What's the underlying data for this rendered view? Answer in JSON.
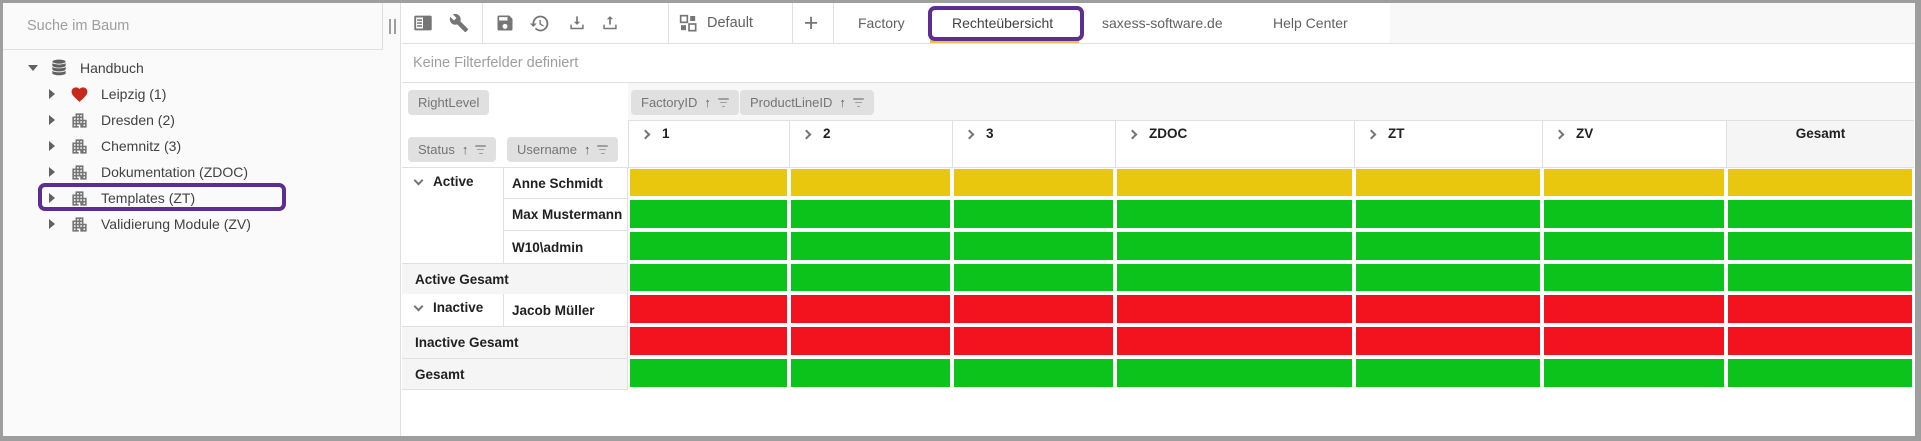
{
  "colors": {
    "annotation_purple": "#5c2e91",
    "active_tab_underline_gold": "#f0c243"
  },
  "sidebar": {
    "search_placeholder": "Suche im Baum",
    "tree": [
      {
        "label": "Handbuch",
        "icon": "database",
        "expanded": true
      },
      {
        "label": "Leipzig (1)",
        "icon": "heart",
        "expanded": false
      },
      {
        "label": "Dresden (2)",
        "icon": "building",
        "expanded": false
      },
      {
        "label": "Chemnitz (3)",
        "icon": "building",
        "expanded": false
      },
      {
        "label": "Dokumentation (ZDOC)",
        "icon": "building",
        "expanded": false
      },
      {
        "label": "Templates (ZT)",
        "icon": "building",
        "expanded": false,
        "highlighted": true
      },
      {
        "label": "Validierung Module (ZV)",
        "icon": "building",
        "expanded": false
      }
    ]
  },
  "toolbar": {
    "icons": [
      "field-chooser",
      "wrench",
      "save",
      "history",
      "download",
      "upload"
    ],
    "layout_selector_label": "Default",
    "add_tab_label": "+",
    "tabs": [
      {
        "label": "Factory",
        "active": false
      },
      {
        "label": "Rechteübersicht",
        "active": true,
        "highlighted": true
      },
      {
        "label": "saxess-software.de",
        "active": false
      },
      {
        "label": "Help Center",
        "active": false
      }
    ]
  },
  "filter_area": {
    "text": "Keine Filterfelder definiert"
  },
  "pivot": {
    "data_field_label": "RightLevel",
    "column_field_labels": [
      {
        "label": "FactoryID",
        "sorted": "asc"
      },
      {
        "label": "ProductLineID",
        "sorted": "asc"
      }
    ],
    "row_field_labels": [
      {
        "label": "Status",
        "sorted": "asc"
      },
      {
        "label": "Username",
        "sorted": "asc"
      }
    ],
    "column_headers": [
      "1",
      "2",
      "3",
      "ZDOC",
      "ZT",
      "ZV"
    ],
    "total_column_label": "Gesamt",
    "cell_colors": {
      "yellow": "#e9c70f",
      "green": "#0cc31c",
      "red": "#f2131f"
    },
    "rows": [
      {
        "kind": "group",
        "status": "Active",
        "username": "Anne Schmidt",
        "cells": "yellow"
      },
      {
        "kind": "member",
        "username": "Max Mustermann",
        "cells": "green"
      },
      {
        "kind": "member",
        "username": "W10\\admin",
        "cells": "green"
      },
      {
        "kind": "total",
        "label": "Active Gesamt",
        "cells": "green"
      },
      {
        "kind": "group",
        "status": "Inactive",
        "username": "Jacob Müller",
        "cells": "red"
      },
      {
        "kind": "total",
        "label": "Inactive Gesamt",
        "cells": "red"
      },
      {
        "kind": "grand_total",
        "label": "Gesamt",
        "cells": "green"
      }
    ]
  }
}
